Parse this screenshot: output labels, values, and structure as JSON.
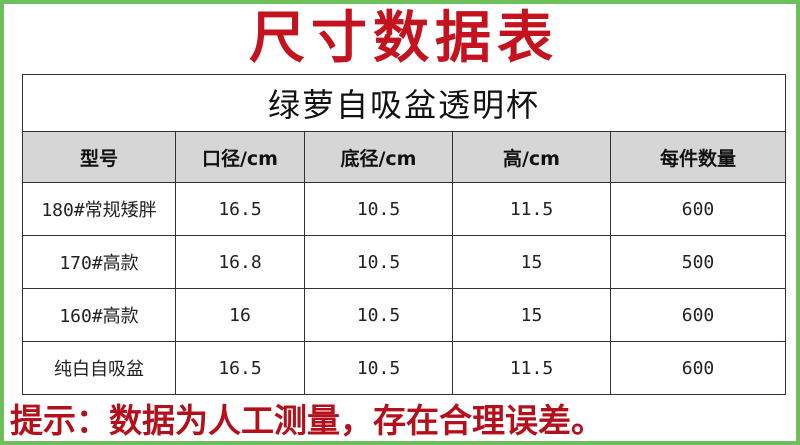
{
  "title": "尺寸数据表",
  "table": {
    "caption": "绿萝自吸盆透明杯",
    "headers": [
      "型号",
      "口径/cm",
      "底径/cm",
      "高/cm",
      "每件数量"
    ],
    "rows": [
      [
        "180#常规矮胖",
        "16.5",
        "10.5",
        "11.5",
        "600"
      ],
      [
        "170#高款",
        "16.8",
        "10.5",
        "15",
        "500"
      ],
      [
        "160#高款",
        "16",
        "10.5",
        "15",
        "600"
      ],
      [
        "纯白自吸盆",
        "16.5",
        "10.5",
        "11.5",
        "600"
      ]
    ]
  },
  "note": "提示：数据为人工测量，存在合理误差。",
  "colors": {
    "title": "#c4121e",
    "note": "#b3101c",
    "border": "#6cbf5a",
    "header_bg": "#d6d6d6"
  }
}
